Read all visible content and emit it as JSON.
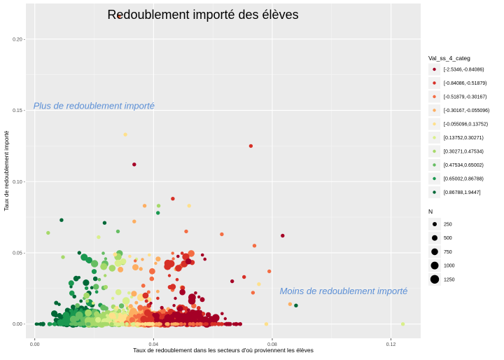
{
  "chart_data": {
    "type": "scatter",
    "title": "Redoublement importé des élèves",
    "xlabel": "Taux de redoublement dans les secteurs d'où proviennent les élèves",
    "ylabel": "Taux de redoublement importé",
    "xlim": [
      -0.003,
      0.13
    ],
    "ylim": [
      -0.01,
      0.225
    ],
    "x_ticks": [
      0.0,
      0.04,
      0.08,
      0.12
    ],
    "x_tick_labels": [
      "0.00",
      "0.04",
      "0.08",
      "0.12"
    ],
    "y_ticks": [
      0.0,
      0.05,
      0.1,
      0.15,
      0.2
    ],
    "y_tick_labels": [
      "0.00 -",
      "0.05 -",
      "0.10 -",
      "0.15 -",
      "0.20 -"
    ],
    "grid": true,
    "annotations": [
      {
        "text": "Plus de redoublement importé",
        "x": -0.0005,
        "y": 0.151
      },
      {
        "text": "Moins de redoublement importé",
        "x": 0.0825,
        "y": 0.021
      }
    ],
    "color_legend": {
      "title": "Val_ss_4_categ",
      "categories": [
        {
          "label": "[-2.5346,-0.84086)",
          "color": "#a50026"
        },
        {
          "label": "[-0.84086,-0.51879)",
          "color": "#d73027"
        },
        {
          "label": "[-0.51879,-0.30167)",
          "color": "#f46d43"
        },
        {
          "label": "[-0.30167,-0.055096)",
          "color": "#fdae61"
        },
        {
          "label": "[-0.055096,0.13752)",
          "color": "#fee08b"
        },
        {
          "label": "[0.13752,0.30271)",
          "color": "#d9ef8b"
        },
        {
          "label": "[0.30271,0.47534)",
          "color": "#a6d96a"
        },
        {
          "label": "[0.47534,0.65002)",
          "color": "#66bd63"
        },
        {
          "label": "[0.65002,0.86788)",
          "color": "#1a9850"
        },
        {
          "label": "[0.86788,1.9447]",
          "color": "#006837"
        }
      ]
    },
    "size_legend": {
      "title": "N",
      "values": [
        250,
        500,
        750,
        1000,
        1250
      ]
    },
    "highlight_points": [
      {
        "x": 0.0283,
        "y": 0.216,
        "category": 2
      },
      {
        "x": 0.0335,
        "y": 0.112,
        "category": 0
      },
      {
        "x": 0.0728,
        "y": 0.125,
        "category": 1
      },
      {
        "x": 0.0305,
        "y": 0.133,
        "category": 4
      },
      {
        "x": 0.0835,
        "y": 0.062,
        "category": 0
      },
      {
        "x": 0.086,
        "y": 0.014,
        "category": 3
      },
      {
        "x": 0.088,
        "y": 0.013,
        "category": 9
      },
      {
        "x": 0.124,
        "y": 0.0,
        "category": 5
      },
      {
        "x": 0.0045,
        "y": 0.064,
        "category": 6
      },
      {
        "x": 0.009,
        "y": 0.073,
        "category": 9
      },
      {
        "x": 0.0465,
        "y": 0.088,
        "category": 1
      },
      {
        "x": 0.037,
        "y": 0.083,
        "category": 3
      },
      {
        "x": 0.0417,
        "y": 0.083,
        "category": 6
      },
      {
        "x": 0.0415,
        "y": 0.078,
        "category": 8
      },
      {
        "x": 0.052,
        "y": 0.083,
        "category": 4
      },
      {
        "x": 0.074,
        "y": 0.055,
        "category": 2
      },
      {
        "x": 0.079,
        "y": 0.037,
        "category": 2
      },
      {
        "x": 0.0735,
        "y": 0.022,
        "category": 2
      },
      {
        "x": 0.0755,
        "y": 0.028,
        "category": 4
      },
      {
        "x": 0.063,
        "y": 0.063,
        "category": 2
      },
      {
        "x": 0.051,
        "y": 0.065,
        "category": 2
      },
      {
        "x": 0.0215,
        "y": 0.061,
        "category": 5
      },
      {
        "x": 0.028,
        "y": 0.065,
        "category": 7
      },
      {
        "x": 0.0335,
        "y": 0.072,
        "category": 3
      },
      {
        "x": 0.0705,
        "y": 0.033,
        "category": 1
      },
      {
        "x": 0.0665,
        "y": 0.03,
        "category": 0
      },
      {
        "x": 0.078,
        "y": 0.0,
        "category": 4
      },
      {
        "x": 0.041,
        "y": 0.0,
        "category": 3
      },
      {
        "x": 0.002,
        "y": 0.0,
        "category": 9
      },
      {
        "x": 0.015,
        "y": 0.05,
        "category": 9
      },
      {
        "x": 0.0095,
        "y": 0.047,
        "category": 6
      },
      {
        "x": 0.0235,
        "y": 0.071,
        "category": 9
      }
    ]
  }
}
